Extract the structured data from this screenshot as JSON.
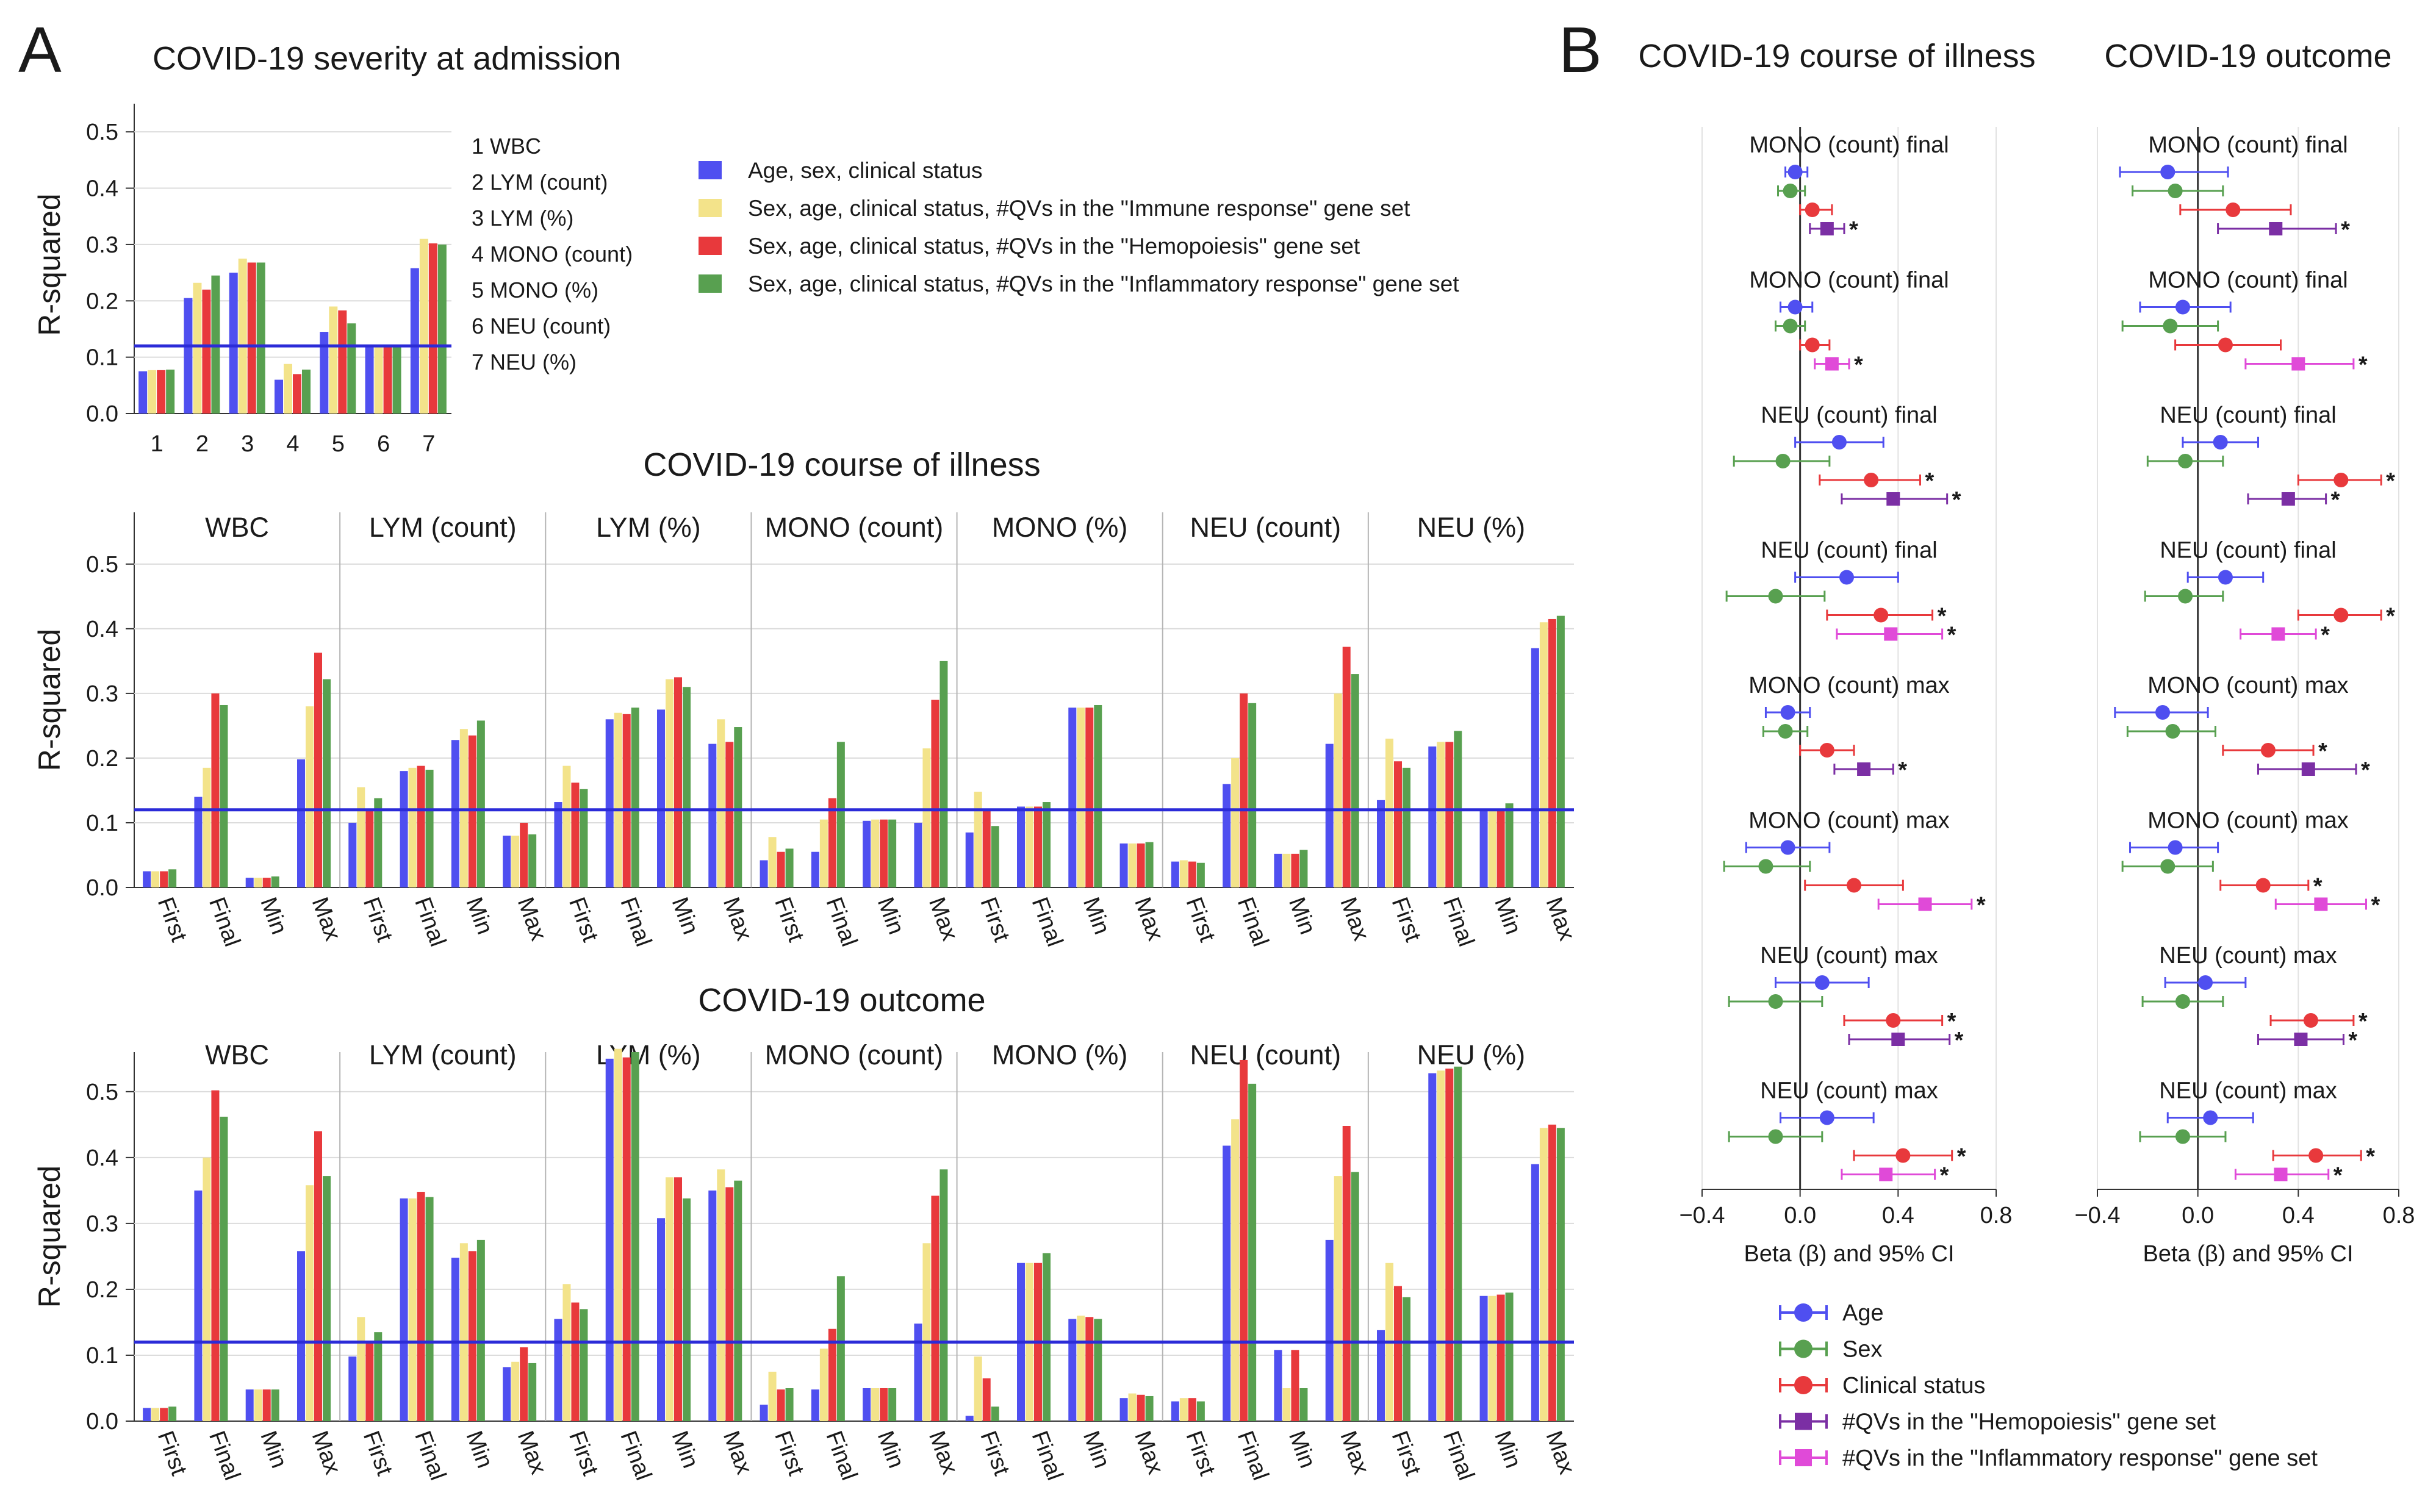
{
  "panel_labels": {
    "a": "A",
    "b": "B"
  },
  "colors": {
    "blue": "#4f4ff0",
    "yellow": "#f3e38a",
    "red": "#e8393c",
    "green": "#58a050",
    "ci_purple": "#7b2fa4",
    "ci_magenta": "#e04ad8",
    "threshold": "#2b2bd8",
    "star_red": "#e0202a",
    "star_purple": "#8a36c0"
  },
  "chart_data": [
    {
      "id": "A_top",
      "type": "bar",
      "title": "COVID-19 severity at admission",
      "ylabel": "R-squared",
      "ylim": [
        0,
        0.55
      ],
      "yticks": [
        "0.0",
        "0.1",
        "0.2",
        "0.3",
        "0.4",
        "0.5"
      ],
      "threshold": 0.12,
      "categories": [
        "1",
        "2",
        "3",
        "4",
        "5",
        "6",
        "7"
      ],
      "category_key": [
        "1 WBC",
        "2 LYM (count)",
        "3 LYM (%)",
        "4 MONO (count)",
        "5 MONO (%)",
        "6 NEU (count)",
        "7 NEU (%)"
      ],
      "series": [
        {
          "name": "Age, sex, clinical status",
          "values": [
            0.075,
            0.205,
            0.25,
            0.06,
            0.145,
            0.12,
            0.258
          ]
        },
        {
          "name": "Sex, age, clinical status, #QVs in the \"Immune response\" gene set",
          "values": [
            0.077,
            0.232,
            0.275,
            0.088,
            0.19,
            0.122,
            0.31
          ]
        },
        {
          "name": "Sex, age, clinical status, #QVs in the \"Hemopoiesis\" gene set",
          "values": [
            0.077,
            0.22,
            0.268,
            0.07,
            0.183,
            0.122,
            0.302
          ]
        },
        {
          "name": "Sex, age, clinical status, #QVs in the \"Inflammatory response\" gene set",
          "values": [
            0.078,
            0.245,
            0.268,
            0.078,
            0.16,
            0.121,
            0.3
          ]
        }
      ]
    },
    {
      "id": "A_mid",
      "type": "bar",
      "title": "COVID-19 course of illness",
      "ylabel": "R-squared",
      "ylim": [
        0,
        0.58
      ],
      "yticks": [
        "0.0",
        "0.1",
        "0.2",
        "0.3",
        "0.4",
        "0.5"
      ],
      "threshold": 0.12,
      "groups": [
        "WBC",
        "LYM (count)",
        "LYM (%)",
        "MONO (count)",
        "MONO (%)",
        "NEU (count)",
        "NEU (%)"
      ],
      "categories": [
        "First",
        "Final",
        "Min",
        "Max"
      ],
      "values": [
        [
          [
            0.025,
            0.025,
            0.025,
            0.028
          ],
          [
            0.14,
            0.185,
            0.3,
            0.282
          ],
          [
            0.015,
            0.015,
            0.015,
            0.017
          ],
          [
            0.198,
            0.28,
            0.363,
            0.322
          ]
        ],
        [
          [
            0.1,
            0.155,
            0.122,
            0.138
          ],
          [
            0.18,
            0.185,
            0.188,
            0.182
          ],
          [
            0.228,
            0.245,
            0.235,
            0.258
          ],
          [
            0.08,
            0.08,
            0.1,
            0.082
          ]
        ],
        [
          [
            0.132,
            0.188,
            0.162,
            0.152
          ],
          [
            0.26,
            0.27,
            0.268,
            0.278
          ],
          [
            0.275,
            0.322,
            0.325,
            0.31
          ],
          [
            0.222,
            0.26,
            0.225,
            0.248
          ]
        ],
        [
          [
            0.042,
            0.078,
            0.055,
            0.06
          ],
          [
            0.055,
            0.105,
            0.138,
            0.225
          ],
          [
            0.103,
            0.105,
            0.105,
            0.105
          ],
          [
            0.1,
            0.215,
            0.29,
            0.35
          ]
        ],
        [
          [
            0.085,
            0.148,
            0.122,
            0.095
          ],
          [
            0.125,
            0.125,
            0.125,
            0.132
          ],
          [
            0.278,
            0.278,
            0.278,
            0.282
          ],
          [
            0.068,
            0.068,
            0.068,
            0.07
          ]
        ],
        [
          [
            0.04,
            0.042,
            0.04,
            0.038
          ],
          [
            0.16,
            0.2,
            0.3,
            0.285
          ],
          [
            0.052,
            0.052,
            0.052,
            0.058
          ],
          [
            0.222,
            0.3,
            0.372,
            0.33
          ]
        ],
        [
          [
            0.135,
            0.23,
            0.195,
            0.185
          ],
          [
            0.218,
            0.225,
            0.225,
            0.242
          ],
          [
            0.12,
            0.122,
            0.122,
            0.13
          ],
          [
            0.37,
            0.41,
            0.415,
            0.42
          ]
        ]
      ]
    },
    {
      "id": "A_bot",
      "type": "bar",
      "title": "COVID-19 outcome",
      "ylabel": "R-squared",
      "ylim": [
        0,
        0.56
      ],
      "yticks": [
        "0.0",
        "0.1",
        "0.2",
        "0.3",
        "0.4",
        "0.5"
      ],
      "threshold": 0.12,
      "groups": [
        "WBC",
        "LYM (count)",
        "LYM (%)",
        "MONO (count)",
        "MONO (%)",
        "NEU (count)",
        "NEU (%)"
      ],
      "categories": [
        "First",
        "Final",
        "Min",
        "Max"
      ],
      "values": [
        [
          [
            0.02,
            0.02,
            0.02,
            0.022
          ],
          [
            0.35,
            0.4,
            0.502,
            0.462
          ],
          [
            0.048,
            0.048,
            0.048,
            0.048
          ],
          [
            0.258,
            0.358,
            0.44,
            0.372
          ]
        ],
        [
          [
            0.098,
            0.158,
            0.12,
            0.135
          ],
          [
            0.338,
            0.338,
            0.348,
            0.34
          ],
          [
            0.248,
            0.27,
            0.258,
            0.275
          ],
          [
            0.082,
            0.09,
            0.112,
            0.088
          ]
        ],
        [
          [
            0.155,
            0.208,
            0.18,
            0.17
          ],
          [
            0.55,
            0.565,
            0.552,
            0.56
          ],
          [
            0.308,
            0.37,
            0.37,
            0.338
          ],
          [
            0.35,
            0.382,
            0.355,
            0.365
          ]
        ],
        [
          [
            0.025,
            0.075,
            0.048,
            0.05
          ],
          [
            0.048,
            0.11,
            0.14,
            0.22
          ],
          [
            0.05,
            0.05,
            0.05,
            0.05
          ],
          [
            0.148,
            0.27,
            0.342,
            0.382
          ]
        ],
        [
          [
            0.008,
            0.098,
            0.065,
            0.022
          ],
          [
            0.24,
            0.24,
            0.24,
            0.255
          ],
          [
            0.155,
            0.16,
            0.158,
            0.155
          ],
          [
            0.035,
            0.042,
            0.04,
            0.038
          ]
        ],
        [
          [
            0.03,
            0.035,
            0.035,
            0.03
          ],
          [
            0.418,
            0.458,
            0.548,
            0.512
          ],
          [
            0.108,
            0.05,
            0.108,
            0.05
          ],
          [
            0.275,
            0.372,
            0.448,
            0.378
          ]
        ],
        [
          [
            0.138,
            0.24,
            0.205,
            0.188
          ],
          [
            0.528,
            0.532,
            0.535,
            0.538
          ],
          [
            0.19,
            0.19,
            0.192,
            0.195
          ],
          [
            0.39,
            0.445,
            0.45,
            0.445
          ]
        ]
      ]
    },
    {
      "id": "B",
      "type": "scatter",
      "subtype": "forest_plot",
      "columns": [
        "COVID-19 course of illness",
        "COVID-19 outcome"
      ],
      "xlabel": "Beta (β) and 95% CI",
      "xlim": [
        -0.4,
        0.8
      ],
      "xticks": [
        "−0.4",
        "0.0",
        "0.4",
        "0.8"
      ],
      "legend": [
        "Age",
        "Sex",
        "Clinical status",
        "#QVs in the \"Hemopoiesis\" gene set",
        "#QVs in the \"Inflammatory response\" gene set"
      ],
      "blocks": [
        {
          "titles": [
            "MONO (count) final",
            "MONO (count) final"
          ],
          "extra": "purple",
          "left": [
            [
              -0.02,
              -0.06,
              0.03
            ],
            [
              -0.04,
              -0.09,
              0.02
            ],
            [
              0.05,
              0.0,
              0.13
            ],
            [
              0.11,
              0.04,
              0.18
            ]
          ],
          "right": [
            [
              -0.12,
              -0.31,
              0.12
            ],
            [
              -0.09,
              -0.26,
              0.1
            ],
            [
              0.14,
              -0.07,
              0.37
            ],
            [
              0.31,
              0.08,
              0.55
            ]
          ],
          "stars": [
            [
              false,
              true
            ],
            [
              false,
              true
            ]
          ]
        },
        {
          "titles": [
            "MONO (count) final",
            "MONO (count) final"
          ],
          "extra": "magenta",
          "left": [
            [
              -0.02,
              -0.08,
              0.05
            ],
            [
              -0.04,
              -0.1,
              0.02
            ],
            [
              0.05,
              0.0,
              0.12
            ],
            [
              0.13,
              0.06,
              0.2
            ]
          ],
          "right": [
            [
              -0.06,
              -0.23,
              0.13
            ],
            [
              -0.11,
              -0.3,
              0.08
            ],
            [
              0.11,
              -0.09,
              0.33
            ],
            [
              0.4,
              0.19,
              0.62
            ]
          ],
          "stars": [
            [
              false,
              true
            ],
            [
              false,
              true
            ]
          ]
        },
        {
          "titles": [
            "NEU (count) final",
            "NEU (count) final"
          ],
          "extra": "purple",
          "left": [
            [
              0.16,
              -0.02,
              0.34
            ],
            [
              -0.07,
              -0.27,
              0.12
            ],
            [
              0.29,
              0.08,
              0.49
            ],
            [
              0.38,
              0.17,
              0.6
            ]
          ],
          "right": [
            [
              0.09,
              -0.06,
              0.24
            ],
            [
              -0.05,
              -0.2,
              0.1
            ],
            [
              0.57,
              0.4,
              0.73
            ],
            [
              0.36,
              0.2,
              0.51
            ]
          ],
          "stars": [
            [
              true,
              true
            ],
            [
              true,
              true
            ]
          ]
        },
        {
          "titles": [
            "NEU (count) final",
            "NEU (count) final"
          ],
          "extra": "magenta",
          "left": [
            [
              0.19,
              -0.02,
              0.4
            ],
            [
              -0.1,
              -0.3,
              0.1
            ],
            [
              0.33,
              0.11,
              0.54
            ],
            [
              0.37,
              0.15,
              0.58
            ]
          ],
          "right": [
            [
              0.11,
              -0.04,
              0.26
            ],
            [
              -0.05,
              -0.21,
              0.1
            ],
            [
              0.57,
              0.4,
              0.73
            ],
            [
              0.32,
              0.17,
              0.47
            ]
          ],
          "stars": [
            [
              true,
              true
            ],
            [
              true,
              true
            ]
          ]
        },
        {
          "titles": [
            "MONO (count) max",
            "MONO (count) max"
          ],
          "extra": "purple",
          "left": [
            [
              -0.05,
              -0.14,
              0.04
            ],
            [
              -0.06,
              -0.15,
              0.03
            ],
            [
              0.11,
              0.0,
              0.22
            ],
            [
              0.26,
              0.14,
              0.38
            ]
          ],
          "right": [
            [
              -0.14,
              -0.33,
              0.04
            ],
            [
              -0.1,
              -0.28,
              0.07
            ],
            [
              0.28,
              0.1,
              0.46
            ],
            [
              0.44,
              0.24,
              0.63
            ]
          ],
          "stars": [
            [
              false,
              true
            ],
            [
              true,
              true
            ]
          ]
        },
        {
          "titles": [
            "MONO (count) max",
            "MONO (count) max"
          ],
          "extra": "magenta",
          "left": [
            [
              -0.05,
              -0.22,
              0.12
            ],
            [
              -0.14,
              -0.31,
              0.04
            ],
            [
              0.22,
              0.02,
              0.42
            ],
            [
              0.51,
              0.32,
              0.7
            ]
          ],
          "right": [
            [
              -0.09,
              -0.27,
              0.08
            ],
            [
              -0.12,
              -0.3,
              0.06
            ],
            [
              0.26,
              0.09,
              0.44
            ],
            [
              0.49,
              0.31,
              0.67
            ]
          ],
          "stars": [
            [
              false,
              true
            ],
            [
              true,
              true
            ]
          ]
        },
        {
          "titles": [
            "NEU (count) max",
            "NEU (count) max"
          ],
          "extra": "purple",
          "left": [
            [
              0.09,
              -0.1,
              0.28
            ],
            [
              -0.1,
              -0.29,
              0.09
            ],
            [
              0.38,
              0.18,
              0.58
            ],
            [
              0.4,
              0.2,
              0.61
            ]
          ],
          "right": [
            [
              0.03,
              -0.13,
              0.19
            ],
            [
              -0.06,
              -0.22,
              0.1
            ],
            [
              0.45,
              0.29,
              0.62
            ],
            [
              0.41,
              0.24,
              0.58
            ]
          ],
          "stars": [
            [
              true,
              true
            ],
            [
              true,
              true
            ]
          ]
        },
        {
          "titles": [
            "NEU (count) max",
            "NEU (count) max"
          ],
          "extra": "magenta",
          "left": [
            [
              0.11,
              -0.08,
              0.3
            ],
            [
              -0.1,
              -0.29,
              0.09
            ],
            [
              0.42,
              0.22,
              0.62
            ],
            [
              0.35,
              0.17,
              0.55
            ]
          ],
          "right": [
            [
              0.05,
              -0.12,
              0.22
            ],
            [
              -0.06,
              -0.23,
              0.11
            ],
            [
              0.47,
              0.3,
              0.65
            ],
            [
              0.33,
              0.15,
              0.52
            ]
          ],
          "stars": [
            [
              true,
              true
            ],
            [
              true,
              true
            ]
          ]
        }
      ]
    }
  ]
}
